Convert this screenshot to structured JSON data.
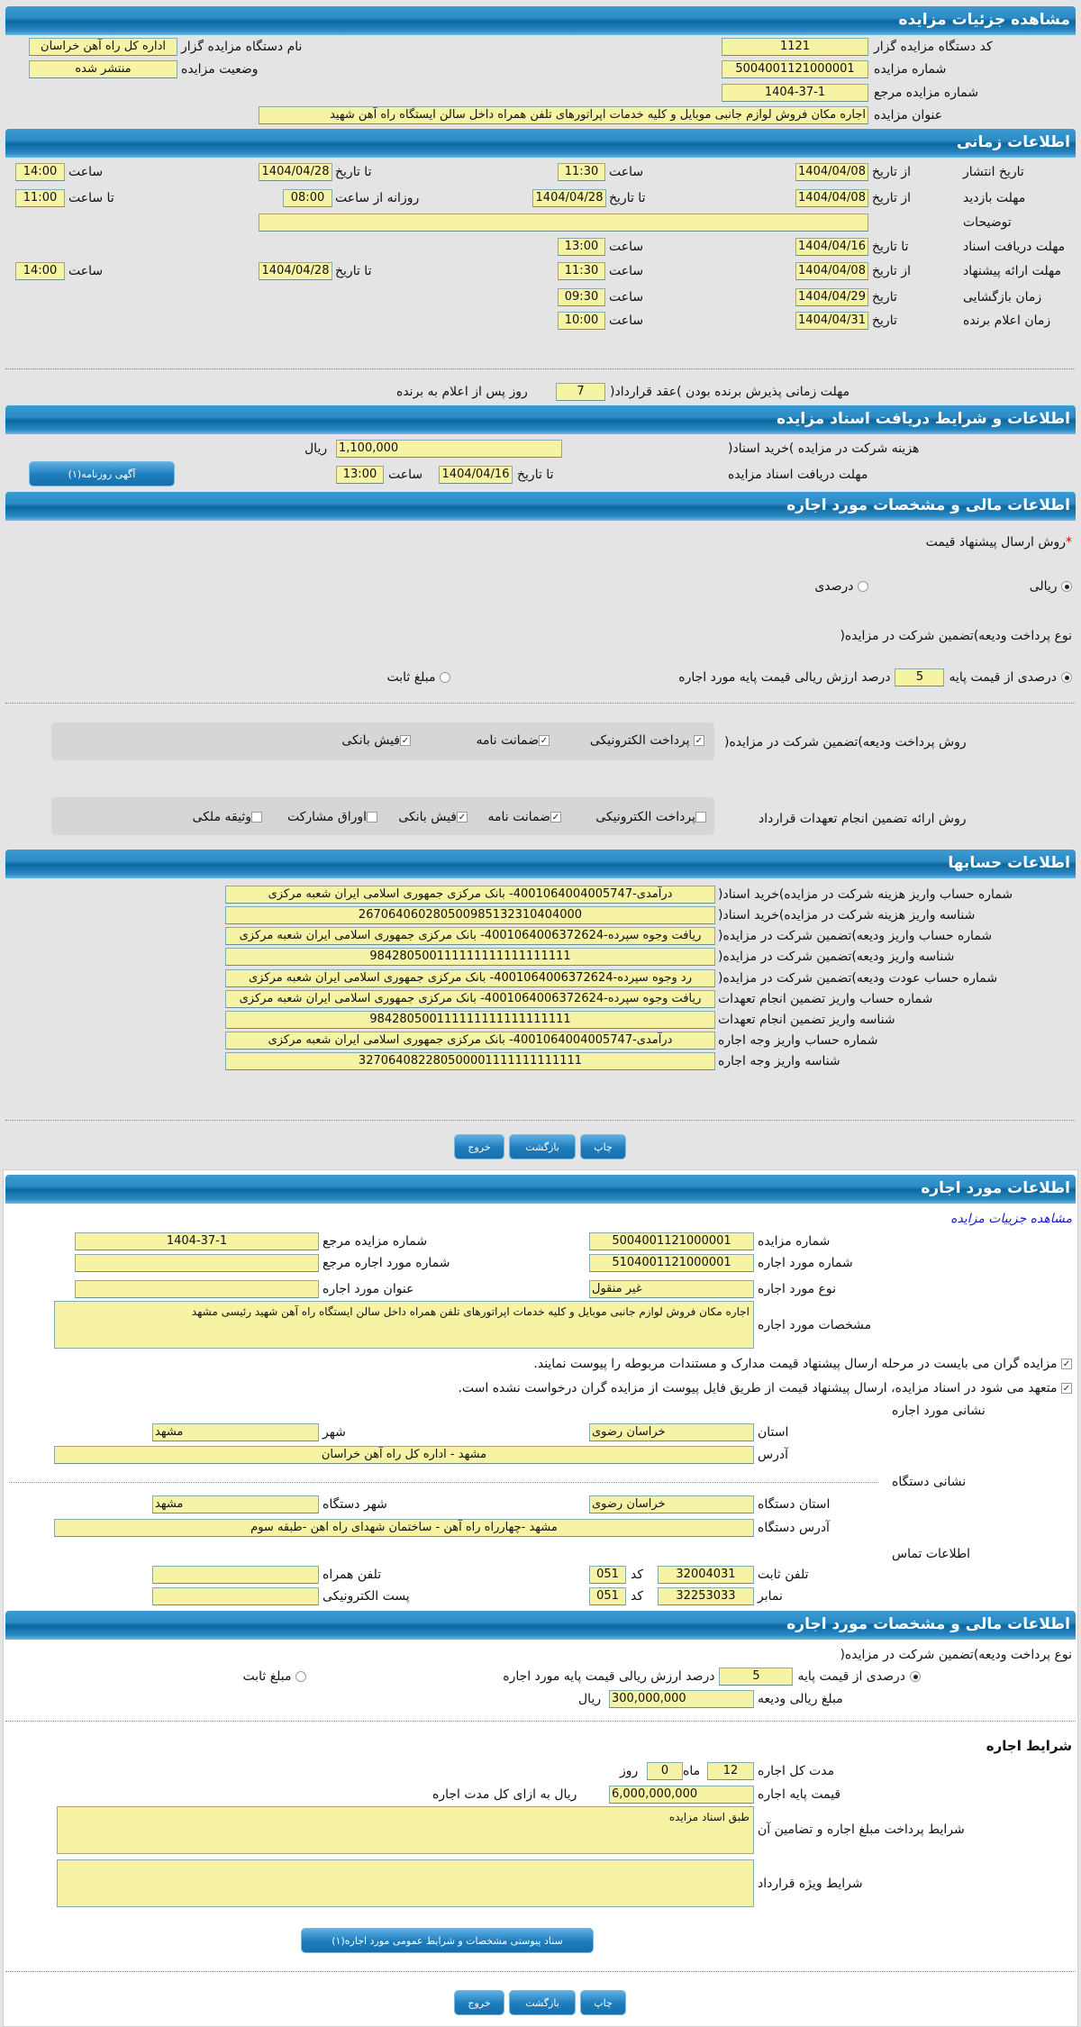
{
  "sec1": {
    "title": "مشاهده جزئیات مزایده",
    "org_code_label": "کد دستگاه مزایده گزار",
    "org_code": "1121",
    "org_name_label": "نام دستگاه مزایده گزار",
    "org_name": "اداره کل راه آهن خراسان",
    "auction_no_label": "شماره مزایده",
    "auction_no": "5004001121000001",
    "status_label": "وضعیت مزایده",
    "status": "منتشر شده",
    "ref_no_label": "شماره مزایده مرجع",
    "ref_no": "1404-37-1",
    "title_label": "عنوان مزایده",
    "auction_title": "اجاره مکان فروش لوازم جانبی موبایل و کلیه خدمات اپراتورهای تلفن همراه داخل سالن ایستگاه راه آهن شهید"
  },
  "sec2": {
    "title": "اطلاعات زمانی",
    "from_date": "از تاریخ",
    "to_date": "تا تاریخ",
    "date": "تاریخ",
    "hour": "ساعت",
    "to_hour": "تا ساعت",
    "daily_from_hour": "روزانه از ساعت",
    "publish": {
      "label": "تاریخ انتشار",
      "from": "1404/04/08",
      "from_time": "11:30",
      "to": "1404/04/28",
      "to_time": "14:00"
    },
    "visit": {
      "label": "مهلت بازدید",
      "from": "1404/04/08",
      "to": "1404/04/28",
      "daily_from": "08:00",
      "daily_to": "11:00"
    },
    "notes_label": "توضیحات",
    "notes": "",
    "doc_receive": {
      "label": "مهلت دریافت اسناد",
      "to": "1404/04/16",
      "time": "13:00"
    },
    "offer": {
      "label": "مهلت ارائه پیشنهاد",
      "from": "1404/04/08",
      "from_time": "11:30",
      "to": "1404/04/28",
      "to_time": "14:00"
    },
    "opening": {
      "label": "زمان بازگشایی",
      "date": "1404/04/29",
      "time": "09:30"
    },
    "winner": {
      "label": "زمان اعلام برنده",
      "date": "1404/04/31",
      "time": "10:00"
    },
    "accept_label": "مهلت زمانی پذیرش برنده بودن )عقد قرارداد(",
    "accept_days": "7",
    "accept_suffix": "روز پس از اعلام به برنده"
  },
  "sec3": {
    "title": "اطلاعات و شرایط دریافت اسناد مزایده",
    "fee_label": "هزینه شرکت در مزایده )خرید اسناد(",
    "fee": "1,100,000",
    "rial": "ریال",
    "deadline_label": "مهلت دریافت اسناد مزایده",
    "to_date": "تا تاریخ",
    "date": "1404/04/16",
    "hour": "ساعت",
    "time": "13:00",
    "newspaper_button": "آگهی روزنامه(۱)"
  },
  "sec4": {
    "title": "اطلاعات مالی و مشخصات مورد اجاره",
    "required_mark": "*",
    "offer_method_label": "روش ارسال پیشنهاد قیمت",
    "offer_methods": [
      "ریالی",
      "درصدی"
    ],
    "offer_method_selected": "ریالی",
    "deposit_type_label": "نوع پرداخت ودیعه)تضمین شرکت در مزایده(",
    "percent_option": "درصدی از قیمت پایه",
    "percent": "5",
    "percent_suffix": "درصد ارزش ریالی قیمت پایه مورد اجاره",
    "fixed_option": "مبلغ ثابت",
    "deposit_method_label": "روش پرداخت ودیعه)تضمین شرکت در مزایده(",
    "deposit_methods": [
      {
        "label": "پرداخت الکترونیکی",
        "checked": true
      },
      {
        "label": "ضمانت نامه",
        "checked": true
      },
      {
        "label": "فیش بانکی",
        "checked": true
      }
    ],
    "guarantee_label": "روش ارائه تضمین انجام تعهدات قرارداد",
    "guarantee_methods": [
      {
        "label": "پرداخت الکترونیکی",
        "checked": false
      },
      {
        "label": "ضمانت نامه",
        "checked": true
      },
      {
        "label": "فیش بانکی",
        "checked": true
      },
      {
        "label": "اوراق مشارکت",
        "checked": false
      },
      {
        "label": "وثیقه ملکی",
        "checked": false
      }
    ]
  },
  "sec5": {
    "title": "اطلاعات حسابها",
    "rows": [
      {
        "label": "شماره حساب واریز هزینه شرکت در مزایده)خرید اسناد(",
        "value": "درآمدی-4001064004005747- بانک مرکزی جمهوری اسلامی ایران شعبه مرکزی"
      },
      {
        "label": "شناسه واریز هزینه شرکت در مزایده)خرید اسناد(",
        "value": "267064060280500985132310404000"
      },
      {
        "label": "شماره حساب واریز ودیعه)تضمین شرکت در مزایده(",
        "value": "ریافت وجوه سپرده-4001064006372624- بانک مرکزی جمهوری اسلامی ایران شعبه مرکزی"
      },
      {
        "label": "شناسه واریز ودیعه)تضمین شرکت در مزایده(",
        "value": "984280500111111111111111111"
      },
      {
        "label": "شماره حساب عودت ودیعه)تضمین شرکت در مزایده(",
        "value": "رد وجوه سپرده-4001064006372624- بانک مرکزی جمهوری اسلامی ایران شعبه مرکزی"
      },
      {
        "label": "شماره حساب واریز تضمین انجام تعهدات",
        "value": "ریافت وجوه سپرده-4001064006372624- بانک مرکزی جمهوری اسلامی ایران شعبه مرکزی"
      },
      {
        "label": "شناسه واریز تضمین انجام تعهدات",
        "value": "984280500111111111111111111"
      },
      {
        "label": "شماره حساب واریز وجه اجاره",
        "value": "درآمدی-4001064004005747- بانک مرکزی جمهوری اسلامی ایران شعبه مرکزی"
      },
      {
        "label": "شناسه واریز وجه اجاره",
        "value": "327064082280500001111111111111"
      }
    ]
  },
  "buttons": {
    "print": "چاپ",
    "back": "بازگشت",
    "exit": "خروج"
  },
  "sec6": {
    "title": "اطلاعات مورد اجاره",
    "details_link": "مشاهده جزییات مزایده",
    "auction_no_label": "شماره مزایده",
    "auction_no": "5004001121000001",
    "ref_no_label": "شماره مزایده مرجع",
    "ref_no": "1404-37-1",
    "lease_no_label": "شماره مورد اجاره",
    "lease_no": "5104001121000001",
    "lease_ref_label": "شماره مورد اجاره مرجع",
    "lease_ref": "",
    "lease_type_label": "نوع مورد اجاره",
    "lease_type": "غیر منقول",
    "lease_title_label": "عنوان مورد اجاره",
    "lease_title": "",
    "spec_label": "مشخصات مورد اجاره",
    "spec": "اجاره مکان فروش لوازم جانبی موبایل و کلیه خدمات اپراتورهای تلفن همراه داخل سالن ایستگاه راه آهن شهید رئیسی مشهد",
    "check1": "مزایده گران می بایست در مرحله ارسال پیشنهاد قیمت مدارک و مستندات مربوطه را پیوست نمایند.",
    "check2": "متعهد می شود در اسناد مزایده، ارسال پیشنهاد قیمت از طریق فایل پیوست از مزایده گران درخواست نشده است.",
    "address_title": "نشانی مورد اجاره",
    "province_label": "استان",
    "province": "خراسان رضوی",
    "city_label": "شهر",
    "city": "مشهد",
    "address_label": "آدرس",
    "address": "مشهد - اداره کل راه آهن خراسان",
    "org_address_title": "نشانی دستگاه",
    "org_province_label": "استان دستگاه",
    "org_province": "خراسان رضوی",
    "org_city_label": "شهر دستگاه",
    "org_city": "مشهد",
    "org_address_label": "آدرس دستگاه",
    "org_address": "مشهد -چهارراه راه آهن - ساختمان شهدای راه اهن -طبقه سوم",
    "contact_title": "اطلاعات تماس",
    "phone_label": "تلفن ثابت",
    "phone": "32004031",
    "code_label": "کد",
    "phone_code": "051",
    "mobile_label": "تلفن همراه",
    "mobile": "",
    "fax_label": "نمابر",
    "fax": "32253033",
    "fax_code": "051",
    "email_label": "پست الکترونیکی",
    "email": ""
  },
  "sec7": {
    "title": "اطلاعات مالی و مشخصات مورد اجاره",
    "deposit_type_label": "نوع پرداخت ودیعه)تضمین شرکت در مزایده(",
    "percent_option": "درصدی از قیمت پایه",
    "percent": "5",
    "percent_suffix": "درصد ارزش ریالی قیمت پایه مورد اجاره",
    "fixed_option": "مبلغ ثابت",
    "deposit_amount_label": "مبلغ ریالی ودیعه",
    "deposit_amount": "300,000,000",
    "rial": "ریال",
    "terms_title": "شرایط اجاره",
    "duration_label": "مدت کل اجاره",
    "months": "12",
    "month_unit": "ماه",
    "days": "0",
    "day_unit": "روز",
    "base_price_label": "قیمت پایه اجاره",
    "base_price": "6,000,000,000",
    "base_price_suffix": "ریال به ازای کل مدت اجاره",
    "payment_terms_label": "شرایط پرداخت مبلغ اجاره و تضامین آن",
    "payment_terms": "طبق اسناد مزایده",
    "special_terms_label": "شرایط ویژه قرارداد",
    "special_terms": "",
    "attachment_button": "سناد پیوستی مشخصات و شرایط عمومی مورد اجاره(١)"
  }
}
